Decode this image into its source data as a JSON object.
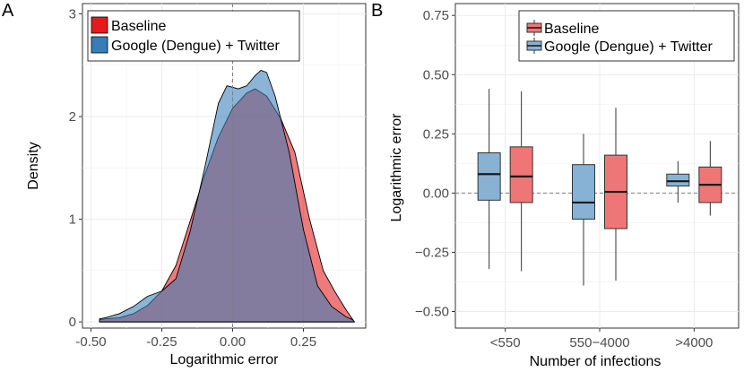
{
  "chart_data": [
    {
      "panel": "A",
      "type": "area",
      "title": "",
      "xlabel": "Logarithmic error",
      "ylabel": "Density",
      "xlim": [
        -0.53,
        0.47
      ],
      "ylim": [
        -0.06,
        3.1
      ],
      "xticks": [
        -0.5,
        -0.25,
        0.0,
        0.25
      ],
      "xtick_labels": [
        "-0.50",
        "-0.25",
        "0.00",
        "0.25"
      ],
      "yticks": [
        0,
        1,
        2,
        3
      ],
      "ytick_labels": [
        "0",
        "1",
        "2",
        "3"
      ],
      "grid": true,
      "reference_line_x": 0,
      "legend_position": "top-left",
      "series": [
        {
          "name": "Baseline",
          "color": "#e41a1c",
          "x": [
            -0.47,
            -0.45,
            -0.4,
            -0.35,
            -0.3,
            -0.25,
            -0.2,
            -0.15,
            -0.1,
            -0.05,
            0.0,
            0.05,
            0.08,
            0.12,
            0.17,
            0.22,
            0.27,
            0.32,
            0.36,
            0.4,
            0.425,
            0.43
          ],
          "y": [
            0.02,
            0.03,
            0.04,
            0.08,
            0.16,
            0.3,
            0.55,
            0.98,
            1.42,
            1.8,
            2.08,
            2.23,
            2.27,
            2.2,
            1.98,
            1.65,
            1.02,
            0.5,
            0.3,
            0.12,
            0.02,
            0.0
          ]
        },
        {
          "name": "Google (Dengue) + Twitter",
          "color": "#377eb8",
          "x": [
            -0.47,
            -0.45,
            -0.4,
            -0.35,
            -0.3,
            -0.25,
            -0.2,
            -0.15,
            -0.1,
            -0.05,
            -0.02,
            0.02,
            0.05,
            0.08,
            0.1,
            0.12,
            0.15,
            0.2,
            0.25,
            0.3,
            0.35,
            0.4,
            0.425,
            0.43
          ],
          "y": [
            0.03,
            0.04,
            0.08,
            0.15,
            0.25,
            0.3,
            0.42,
            0.88,
            1.48,
            2.13,
            2.3,
            2.27,
            2.3,
            2.4,
            2.45,
            2.43,
            2.2,
            1.65,
            0.9,
            0.35,
            0.15,
            0.05,
            0.02,
            0.0
          ]
        }
      ]
    },
    {
      "panel": "B",
      "type": "box",
      "title": "",
      "xlabel": "Number of infections",
      "ylabel": "Logarithmic error",
      "categories": [
        "<550",
        "550−4000",
        ">4000"
      ],
      "ylim": [
        -0.5,
        0.75
      ],
      "yticks": [
        -0.5,
        -0.25,
        0.0,
        0.25,
        0.5,
        0.75
      ],
      "ytick_labels": [
        "−0.50",
        "−0.25",
        "0.00",
        "0.25",
        "0.50",
        "0.75"
      ],
      "grid": true,
      "reference_line_y": 0,
      "legend_position": "top-right",
      "series": [
        {
          "name": "Baseline",
          "color": "#e41a1c",
          "boxes": [
            {
              "category": "<550",
              "min": -0.33,
              "q1": -0.04,
              "median": 0.07,
              "q3": 0.195,
              "max": 0.43
            },
            {
              "category": "550−4000",
              "min": -0.37,
              "q1": -0.15,
              "median": 0.005,
              "q3": 0.16,
              "max": 0.36
            },
            {
              "category": ">4000",
              "min": -0.095,
              "q1": -0.04,
              "median": 0.035,
              "q3": 0.11,
              "max": 0.22
            }
          ]
        },
        {
          "name": "Google (Dengue) + Twitter",
          "color": "#377eb8",
          "boxes": [
            {
              "category": "<550",
              "min": -0.32,
              "q1": -0.03,
              "median": 0.08,
              "q3": 0.17,
              "max": 0.44
            },
            {
              "category": "550−4000",
              "min": -0.39,
              "q1": -0.11,
              "median": -0.04,
              "q3": 0.12,
              "max": 0.25
            },
            {
              "category": ">4000",
              "min": -0.04,
              "q1": 0.03,
              "median": 0.05,
              "q3": 0.08,
              "max": 0.135
            }
          ]
        }
      ]
    }
  ]
}
